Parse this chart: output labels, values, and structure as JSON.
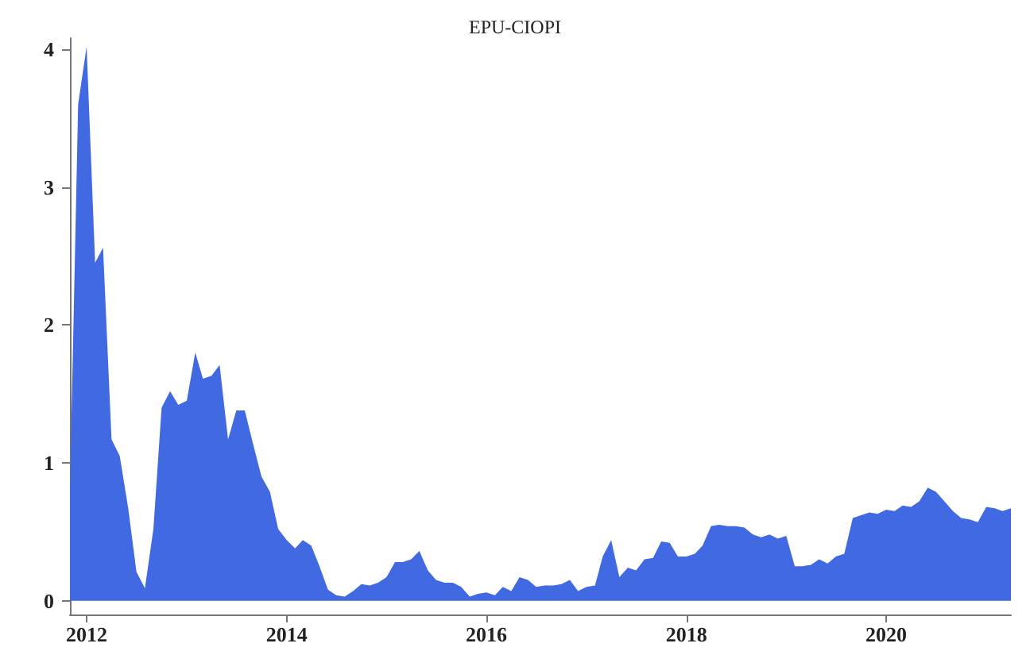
{
  "chart_data": {
    "type": "area",
    "title": "EPU-CIOPI",
    "x": [
      "2011-11",
      "2011-12",
      "2012-01",
      "2012-02",
      "2012-03",
      "2012-04",
      "2012-05",
      "2012-06",
      "2012-07",
      "2012-08",
      "2012-09",
      "2012-10",
      "2012-11",
      "2012-12",
      "2013-01",
      "2013-02",
      "2013-03",
      "2013-04",
      "2013-05",
      "2013-06",
      "2013-07",
      "2013-08",
      "2013-09",
      "2013-10",
      "2013-11",
      "2013-12",
      "2014-01",
      "2014-02",
      "2014-03",
      "2014-04",
      "2014-05",
      "2014-06",
      "2014-07",
      "2014-08",
      "2014-09",
      "2014-10",
      "2014-11",
      "2014-12",
      "2015-01",
      "2015-02",
      "2015-03",
      "2015-04",
      "2015-05",
      "2015-06",
      "2015-07",
      "2015-08",
      "2015-09",
      "2015-10",
      "2015-11",
      "2015-12",
      "2016-01",
      "2016-02",
      "2016-03",
      "2016-04",
      "2016-05",
      "2016-06",
      "2016-07",
      "2016-08",
      "2016-09",
      "2016-10",
      "2016-11",
      "2016-12",
      "2017-01",
      "2017-02",
      "2017-03",
      "2017-04",
      "2017-05",
      "2017-06",
      "2017-07",
      "2017-08",
      "2017-09",
      "2017-10",
      "2017-11",
      "2017-12",
      "2018-01",
      "2018-02",
      "2018-03",
      "2018-04",
      "2018-05",
      "2018-06",
      "2018-07",
      "2018-08",
      "2018-09",
      "2018-10",
      "2018-11",
      "2018-12",
      "2019-01",
      "2019-02",
      "2019-03",
      "2019-04",
      "2019-05",
      "2019-06",
      "2019-07",
      "2019-08",
      "2019-09",
      "2019-10",
      "2019-11",
      "2019-12",
      "2020-01",
      "2020-02",
      "2020-03",
      "2020-04",
      "2020-05",
      "2020-06",
      "2020-07",
      "2020-08",
      "2020-09",
      "2020-10",
      "2020-11",
      "2020-12",
      "2021-01",
      "2021-02",
      "2021-03",
      "2021-04"
    ],
    "series": [
      {
        "color": "#4169e1",
        "values": [
          0.8,
          3.6,
          4.02,
          2.45,
          2.56,
          1.17,
          1.05,
          0.67,
          0.21,
          0.09,
          0.52,
          1.4,
          1.52,
          1.42,
          1.45,
          1.8,
          1.61,
          1.63,
          1.71,
          1.17,
          1.38,
          1.38,
          1.13,
          0.9,
          0.79,
          0.52,
          0.44,
          0.38,
          0.44,
          0.4,
          0.25,
          0.08,
          0.04,
          0.03,
          0.07,
          0.12,
          0.11,
          0.13,
          0.17,
          0.28,
          0.28,
          0.3,
          0.36,
          0.22,
          0.15,
          0.13,
          0.13,
          0.1,
          0.03,
          0.05,
          0.06,
          0.04,
          0.1,
          0.07,
          0.17,
          0.15,
          0.1,
          0.11,
          0.11,
          0.12,
          0.15,
          0.07,
          0.1,
          0.11,
          0.32,
          0.44,
          0.17,
          0.24,
          0.22,
          0.3,
          0.31,
          0.43,
          0.42,
          0.32,
          0.32,
          0.34,
          0.4,
          0.54,
          0.55,
          0.54,
          0.54,
          0.53,
          0.48,
          0.46,
          0.48,
          0.45,
          0.47,
          0.25,
          0.25,
          0.26,
          0.3,
          0.27,
          0.32,
          0.34,
          0.6,
          0.62,
          0.64,
          0.63,
          0.66,
          0.65,
          0.69,
          0.68,
          0.72,
          0.82,
          0.79,
          0.72,
          0.65,
          0.6,
          0.59,
          0.57,
          0.68,
          0.67,
          0.65,
          0.67
        ]
      }
    ],
    "xlim": [
      "2011-11",
      "2021-04"
    ],
    "xticks": [
      "2012",
      "2014",
      "2016",
      "2018",
      "2020"
    ],
    "ylim": [
      -0.1,
      4.08
    ],
    "yticks": [
      0,
      1,
      2,
      3,
      4
    ],
    "grid": false
  }
}
